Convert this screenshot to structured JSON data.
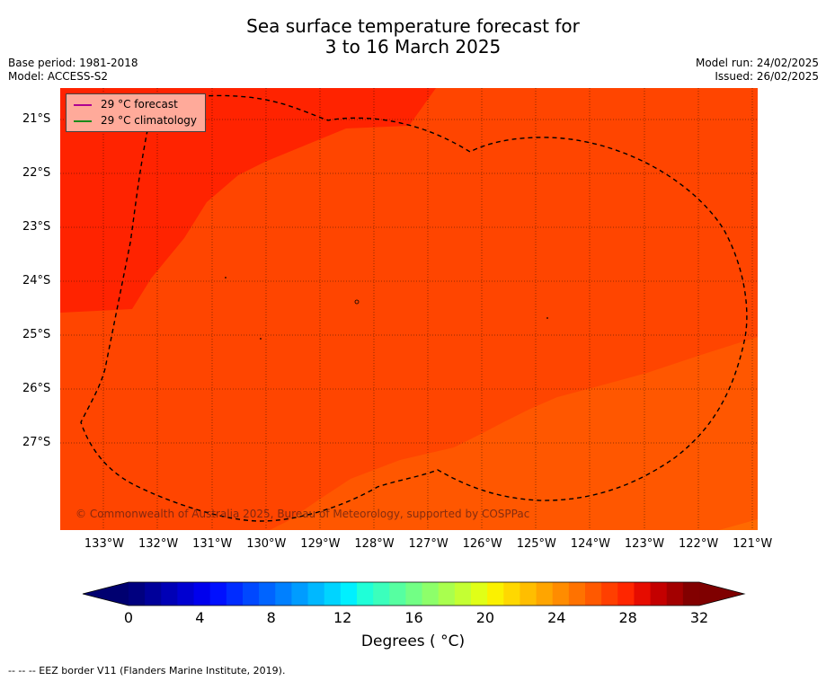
{
  "title_line1": "Sea surface temperature forecast for",
  "title_line2": "3 to 16 March 2025",
  "base_period": "Base period: 1981-2018",
  "model": "Model: ACCESS-S2",
  "model_run": "Model run: 24/02/2025",
  "issued": "Issued: 26/02/2025",
  "legend": {
    "forecast_label": "29 °C  forecast",
    "forecast_color": "#b00090",
    "climatology_label": "29 °C  climatology",
    "climatology_color": "#1a8a1a"
  },
  "lat_labels": [
    "21°S",
    "22°S",
    "23°S",
    "24°S",
    "25°S",
    "26°S",
    "27°S"
  ],
  "lon_labels": [
    "133°W",
    "132°W",
    "131°W",
    "130°W",
    "129°W",
    "128°W",
    "127°W",
    "126°W",
    "125°W",
    "124°W",
    "123°W",
    "122°W",
    "121°W"
  ],
  "copyright": "© Commonwealth of Australia 2025, Bureau of Meteorology, supported by COSPPac",
  "colorbar": {
    "ticks": [
      "0",
      "4",
      "8",
      "12",
      "16",
      "20",
      "24",
      "28",
      "32"
    ],
    "title": "Degrees ( °C)",
    "colors": [
      "#00007f",
      "#00009a",
      "#0000b6",
      "#0000d1",
      "#0000ed",
      "#0010ff",
      "#002cff",
      "#0048ff",
      "#0064ff",
      "#0080ff",
      "#009cff",
      "#00b8ff",
      "#00d4ff",
      "#00f0ff",
      "#1fffd8",
      "#3bffbc",
      "#56ffa1",
      "#72ff85",
      "#8dff6a",
      "#a9ff4e",
      "#c4ff33",
      "#e0ff17",
      "#fbf100",
      "#ffd800",
      "#ffbe00",
      "#ffa500",
      "#ff8c00",
      "#ff7200",
      "#ff5900",
      "#ff3f00",
      "#ff2600",
      "#e60c00",
      "#c40000",
      "#a30000",
      "#820000"
    ],
    "under_color": "#000070",
    "over_color": "#7f0000"
  },
  "footnote": "--  --  -- EEZ border V11 (Flanders Marine Institute, 2019)."
}
